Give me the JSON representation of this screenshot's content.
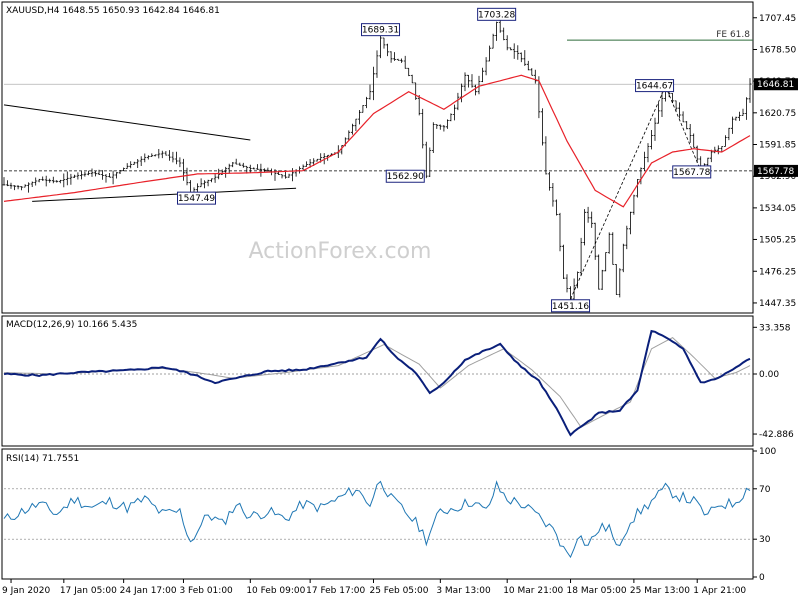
{
  "chart_data": {
    "type": "line",
    "header": "XAUUSD,H4  1648.55 1650.93 1642.84 1646.81",
    "watermark": "ActionForex.com",
    "colors": {
      "price": "#000000",
      "sma": "#e8222a",
      "macd": "#0a1f7a",
      "signal": "#a0a0a0",
      "trendline": "#000000",
      "fib_line": "#2e6b3a",
      "label_border": "#1a237e",
      "grid": "#808080",
      "tag_bg": "#000000",
      "tag_fg": "#ffffff"
    },
    "price_panel": {
      "ylim": [
        1440,
        1720
      ],
      "y_ticks": [
        "1707.45",
        "1678.50",
        "1649.70",
        "1620.75",
        "1591.85",
        "1562.90",
        "1534.05",
        "1505.25",
        "1476.25",
        "1447.35"
      ],
      "y_tick_values": [
        1707.45,
        1678.5,
        1649.7,
        1620.75,
        1591.85,
        1562.9,
        1534.05,
        1505.25,
        1476.25,
        1447.35
      ],
      "current_price_tag": "1646.81",
      "current_price": 1646.81,
      "level_tag": "1567.78",
      "level": 1567.78,
      "fib_label": "FE 61.8",
      "fib_level": 1687,
      "annotations": [
        {
          "text": "1689.31",
          "bar": 107,
          "value": 1689.31
        },
        {
          "text": "1703.28",
          "bar": 140,
          "value": 1703.28
        },
        {
          "text": "1562.90",
          "bar": 120,
          "value": 1562.9
        },
        {
          "text": "1547.49",
          "bar": 53,
          "value": 1547.49
        },
        {
          "text": "1451.16",
          "bar": 161,
          "value": 1451.16
        },
        {
          "text": "1644.67",
          "bar": 188,
          "value": 1644.67
        },
        {
          "text": "1567.78",
          "bar": 198,
          "value": 1567.78
        }
      ],
      "key_points": [
        [
          0,
          1555
        ],
        [
          5,
          1553
        ],
        [
          10,
          1560
        ],
        [
          15,
          1558
        ],
        [
          20,
          1563
        ],
        [
          25,
          1566
        ],
        [
          30,
          1562
        ],
        [
          35,
          1572
        ],
        [
          40,
          1580
        ],
        [
          45,
          1584
        ],
        [
          50,
          1575
        ],
        [
          53,
          1548
        ],
        [
          56,
          1556
        ],
        [
          60,
          1562
        ],
        [
          65,
          1575
        ],
        [
          70,
          1570
        ],
        [
          75,
          1568
        ],
        [
          80,
          1562
        ],
        [
          85,
          1572
        ],
        [
          90,
          1580
        ],
        [
          95,
          1585
        ],
        [
          100,
          1615
        ],
        [
          104,
          1640
        ],
        [
          107,
          1689
        ],
        [
          110,
          1670
        ],
        [
          113,
          1668
        ],
        [
          116,
          1648
        ],
        [
          118,
          1620
        ],
        [
          120,
          1563
        ],
        [
          122,
          1610
        ],
        [
          125,
          1608
        ],
        [
          128,
          1625
        ],
        [
          131,
          1655
        ],
        [
          134,
          1640
        ],
        [
          137,
          1668
        ],
        [
          140,
          1703
        ],
        [
          143,
          1680
        ],
        [
          146,
          1675
        ],
        [
          149,
          1660
        ],
        [
          151,
          1650
        ],
        [
          154,
          1565
        ],
        [
          157,
          1528
        ],
        [
          159,
          1470
        ],
        [
          161,
          1451
        ],
        [
          163,
          1475
        ],
        [
          165,
          1530
        ],
        [
          167,
          1520
        ],
        [
          169,
          1460
        ],
        [
          172,
          1510
        ],
        [
          174,
          1455
        ],
        [
          176,
          1500
        ],
        [
          180,
          1560
        ],
        [
          184,
          1600
        ],
        [
          188,
          1645
        ],
        [
          191,
          1625
        ],
        [
          195,
          1600
        ],
        [
          198,
          1568
        ],
        [
          201,
          1585
        ],
        [
          204,
          1590
        ],
        [
          207,
          1615
        ],
        [
          210,
          1620
        ],
        [
          212,
          1647
        ]
      ]
    },
    "sma": {
      "key_points": [
        [
          0,
          1540
        ],
        [
          20,
          1548
        ],
        [
          40,
          1558
        ],
        [
          55,
          1565
        ],
        [
          70,
          1566
        ],
        [
          85,
          1568
        ],
        [
          95,
          1585
        ],
        [
          105,
          1620
        ],
        [
          115,
          1640
        ],
        [
          125,
          1624
        ],
        [
          135,
          1645
        ],
        [
          147,
          1655
        ],
        [
          152,
          1650
        ],
        [
          160,
          1595
        ],
        [
          168,
          1550
        ],
        [
          176,
          1535
        ],
        [
          184,
          1575
        ],
        [
          190,
          1585
        ],
        [
          196,
          1588
        ],
        [
          204,
          1585
        ],
        [
          212,
          1600
        ]
      ]
    },
    "trendlines": [
      {
        "from": [
          0,
          1628
        ],
        "to": [
          70,
          1596
        ]
      },
      {
        "from": [
          8,
          1540
        ],
        "to": [
          83,
          1552
        ]
      }
    ],
    "macd": {
      "label": "MACD(12,26,9) 10.166 5.435",
      "ylim": [
        -50,
        40
      ],
      "y_ticks": [
        "33.358",
        "0.00",
        "-42.886"
      ],
      "y_tick_values": [
        33.358,
        0,
        -42.886
      ],
      "macd_points": [
        [
          0,
          0
        ],
        [
          10,
          -1
        ],
        [
          20,
          1
        ],
        [
          30,
          2
        ],
        [
          38,
          3
        ],
        [
          45,
          5
        ],
        [
          52,
          1
        ],
        [
          60,
          -6
        ],
        [
          66,
          -3
        ],
        [
          75,
          2
        ],
        [
          85,
          3
        ],
        [
          95,
          8
        ],
        [
          103,
          12
        ],
        [
          107,
          25
        ],
        [
          111,
          13
        ],
        [
          117,
          1
        ],
        [
          121,
          -14
        ],
        [
          125,
          -6
        ],
        [
          131,
          10
        ],
        [
          136,
          16
        ],
        [
          141,
          21
        ],
        [
          147,
          5
        ],
        [
          152,
          -5
        ],
        [
          157,
          -25
        ],
        [
          161,
          -43
        ],
        [
          165,
          -36
        ],
        [
          169,
          -28
        ],
        [
          175,
          -26
        ],
        [
          180,
          -12
        ],
        [
          184,
          31
        ],
        [
          188,
          26
        ],
        [
          193,
          18
        ],
        [
          198,
          -6
        ],
        [
          202,
          -4
        ],
        [
          207,
          3
        ],
        [
          212,
          11
        ]
      ],
      "signal_points": [
        [
          0,
          1
        ],
        [
          15,
          0
        ],
        [
          30,
          2
        ],
        [
          45,
          4
        ],
        [
          55,
          1
        ],
        [
          65,
          -3
        ],
        [
          80,
          1
        ],
        [
          95,
          6
        ],
        [
          108,
          21
        ],
        [
          118,
          7
        ],
        [
          124,
          -10
        ],
        [
          132,
          6
        ],
        [
          142,
          18
        ],
        [
          150,
          3
        ],
        [
          158,
          -16
        ],
        [
          164,
          -38
        ],
        [
          170,
          -30
        ],
        [
          178,
          -20
        ],
        [
          184,
          18
        ],
        [
          190,
          26
        ],
        [
          196,
          12
        ],
        [
          202,
          -3
        ],
        [
          208,
          1
        ],
        [
          212,
          6
        ]
      ]
    },
    "rsi": {
      "label": "RSI(14) 71.7551",
      "ylim": [
        0,
        100
      ],
      "y_ticks": [
        "100",
        "70",
        "30",
        "0"
      ],
      "y_tick_values": [
        100,
        70,
        30,
        0
      ],
      "levels": [
        70,
        30
      ],
      "key_points": [
        [
          0,
          45
        ],
        [
          5,
          52
        ],
        [
          10,
          58
        ],
        [
          15,
          50
        ],
        [
          20,
          62
        ],
        [
          25,
          55
        ],
        [
          30,
          60
        ],
        [
          35,
          55
        ],
        [
          40,
          62
        ],
        [
          45,
          50
        ],
        [
          50,
          52
        ],
        [
          53,
          28
        ],
        [
          58,
          50
        ],
        [
          62,
          42
        ],
        [
          66,
          58
        ],
        [
          70,
          48
        ],
        [
          75,
          52
        ],
        [
          80,
          46
        ],
        [
          85,
          58
        ],
        [
          90,
          55
        ],
        [
          95,
          62
        ],
        [
          100,
          70
        ],
        [
          104,
          58
        ],
        [
          107,
          78
        ],
        [
          110,
          62
        ],
        [
          114,
          52
        ],
        [
          118,
          40
        ],
        [
          120,
          30
        ],
        [
          124,
          52
        ],
        [
          128,
          55
        ],
        [
          133,
          60
        ],
        [
          137,
          52
        ],
        [
          140,
          72
        ],
        [
          143,
          62
        ],
        [
          147,
          58
        ],
        [
          151,
          50
        ],
        [
          155,
          40
        ],
        [
          157,
          35
        ],
        [
          159,
          22
        ],
        [
          161,
          18
        ],
        [
          163,
          34
        ],
        [
          166,
          25
        ],
        [
          169,
          38
        ],
        [
          172,
          40
        ],
        [
          174,
          22
        ],
        [
          178,
          45
        ],
        [
          182,
          55
        ],
        [
          188,
          70
        ],
        [
          192,
          64
        ],
        [
          196,
          60
        ],
        [
          200,
          48
        ],
        [
          203,
          58
        ],
        [
          207,
          58
        ],
        [
          210,
          66
        ],
        [
          212,
          72
        ]
      ]
    },
    "x_ticks": [
      {
        "label": "9 Jan 2020",
        "bar": 2
      },
      {
        "label": "17 Jan 05:00",
        "bar": 17
      },
      {
        "label": "24 Jan 17:00",
        "bar": 34
      },
      {
        "label": "3 Feb 01:00",
        "bar": 51
      },
      {
        "label": "10 Feb 09:00",
        "bar": 70
      },
      {
        "label": "17 Feb 17:00",
        "bar": 87
      },
      {
        "label": "25 Feb 05:00",
        "bar": 105
      },
      {
        "label": "3 Mar 13:00",
        "bar": 124
      },
      {
        "label": "10 Mar 21:00",
        "bar": 143
      },
      {
        "label": "18 Mar 05:00",
        "bar": 161
      },
      {
        "label": "25 Mar 13:00",
        "bar": 179
      },
      {
        "label": "1 Apr 21:00",
        "bar": 197
      }
    ],
    "bar_count": 213
  }
}
